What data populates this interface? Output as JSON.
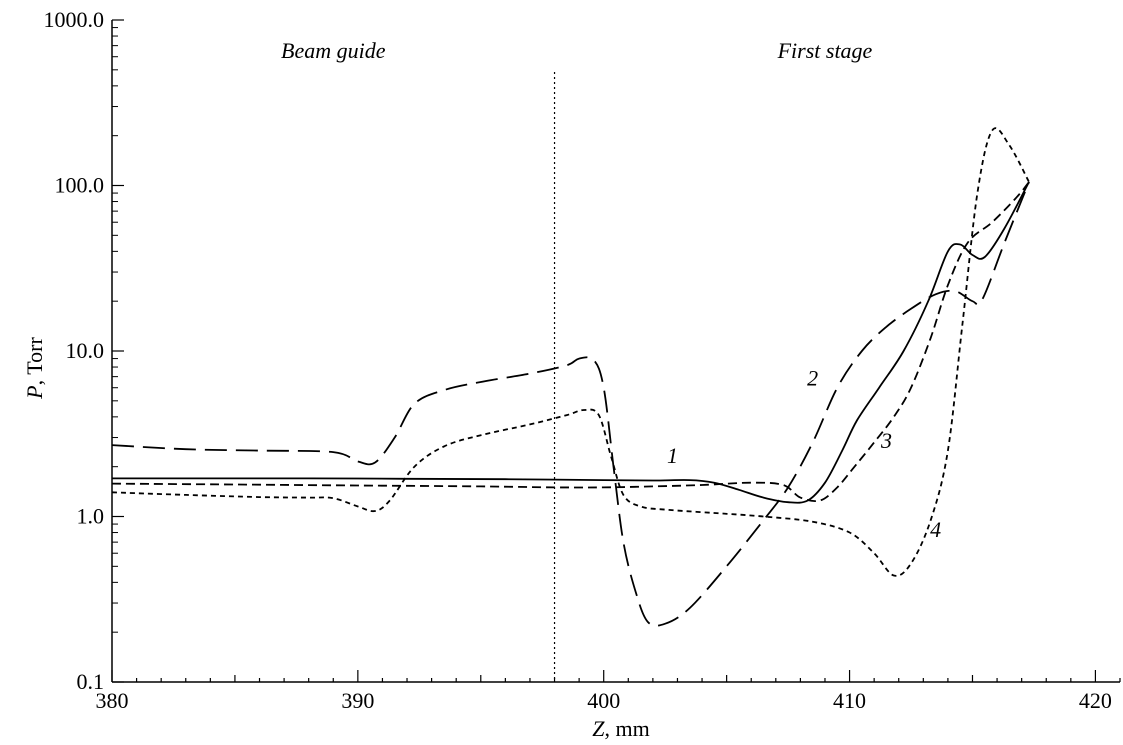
{
  "chart_data": {
    "type": "line",
    "title": "",
    "xlabel": {
      "symbol": "Z",
      "unit": ", mm"
    },
    "ylabel": {
      "symbol": "P",
      "unit": ", Torr"
    },
    "xlim": [
      380,
      421
    ],
    "ylim": [
      0.1,
      1000
    ],
    "yscale": "log",
    "x_ticks": [
      380,
      390,
      400,
      410,
      420
    ],
    "x_tick_labels": [
      "380",
      "390",
      "400",
      "410",
      "420"
    ],
    "y_ticks": [
      0.1,
      1,
      10,
      100,
      1000
    ],
    "y_tick_labels": [
      "0.1",
      "1.0",
      "10.0",
      "100.0",
      "1000.0"
    ],
    "grid": false,
    "divider": {
      "x": 398,
      "style": "dotted"
    },
    "regions": [
      {
        "label": "Beam guide",
        "x": 389
      },
      {
        "label": "First stage",
        "x": 409
      }
    ],
    "series": [
      {
        "name": "1",
        "style": "solid",
        "label_at": {
          "x": 402.8,
          "y": 2.1
        },
        "points": [
          [
            380,
            1.7
          ],
          [
            384,
            1.7
          ],
          [
            388,
            1.7
          ],
          [
            392,
            1.69
          ],
          [
            396,
            1.68
          ],
          [
            398,
            1.67
          ],
          [
            400,
            1.66
          ],
          [
            402,
            1.65
          ],
          [
            403.5,
            1.66
          ],
          [
            404.5,
            1.6
          ],
          [
            405.5,
            1.45
          ],
          [
            406.5,
            1.3
          ],
          [
            407.5,
            1.22
          ],
          [
            408.3,
            1.25
          ],
          [
            409,
            1.6
          ],
          [
            409.7,
            2.5
          ],
          [
            410.3,
            3.8
          ],
          [
            411.2,
            6
          ],
          [
            412.2,
            10
          ],
          [
            413.2,
            20
          ],
          [
            414,
            40
          ],
          [
            414.5,
            44
          ],
          [
            415,
            38
          ],
          [
            415.5,
            37
          ],
          [
            416.3,
            55
          ],
          [
            417.3,
            105
          ]
        ]
      },
      {
        "name": "2",
        "style": "long-dash",
        "label_at": {
          "x": 408.5,
          "y": 6.2
        },
        "points": [
          [
            380,
            2.7
          ],
          [
            383,
            2.55
          ],
          [
            386,
            2.5
          ],
          [
            389,
            2.45
          ],
          [
            390,
            2.15
          ],
          [
            390.7,
            2.12
          ],
          [
            391.5,
            3
          ],
          [
            392.3,
            4.8
          ],
          [
            393.5,
            5.8
          ],
          [
            395,
            6.5
          ],
          [
            397,
            7.3
          ],
          [
            398.5,
            8.2
          ],
          [
            399,
            9
          ],
          [
            399.6,
            8.8
          ],
          [
            400,
            6
          ],
          [
            400.4,
            2
          ],
          [
            400.8,
            0.7
          ],
          [
            401.3,
            0.35
          ],
          [
            401.8,
            0.23
          ],
          [
            402.5,
            0.225
          ],
          [
            403.5,
            0.28
          ],
          [
            405,
            0.5
          ],
          [
            406.5,
            0.95
          ],
          [
            407.5,
            1.5
          ],
          [
            408.5,
            2.8
          ],
          [
            409.5,
            6
          ],
          [
            410.5,
            10
          ],
          [
            411.5,
            14
          ],
          [
            412.5,
            18
          ],
          [
            413.5,
            22
          ],
          [
            414.3,
            23
          ],
          [
            415,
            20
          ],
          [
            415.4,
            20.5
          ],
          [
            416.3,
            45
          ],
          [
            417.3,
            105
          ]
        ]
      },
      {
        "name": "3",
        "style": "short-dash",
        "label_at": {
          "x": 411.5,
          "y": 2.6
        },
        "points": [
          [
            380,
            1.58
          ],
          [
            385,
            1.56
          ],
          [
            390,
            1.54
          ],
          [
            395,
            1.52
          ],
          [
            398,
            1.5
          ],
          [
            400,
            1.5
          ],
          [
            402,
            1.52
          ],
          [
            404,
            1.55
          ],
          [
            406,
            1.6
          ],
          [
            407.3,
            1.55
          ],
          [
            408,
            1.3
          ],
          [
            408.8,
            1.25
          ],
          [
            409.5,
            1.5
          ],
          [
            410.2,
            2
          ],
          [
            411,
            2.8
          ],
          [
            411.8,
            4
          ],
          [
            412.5,
            6
          ],
          [
            413.3,
            12
          ],
          [
            414,
            25
          ],
          [
            414.8,
            45
          ],
          [
            415.8,
            60
          ],
          [
            416.8,
            85
          ],
          [
            417.3,
            105
          ]
        ]
      },
      {
        "name": "4",
        "style": "dot-dash",
        "label_at": {
          "x": 413.5,
          "y": 0.75
        },
        "points": [
          [
            380,
            1.4
          ],
          [
            383,
            1.35
          ],
          [
            386,
            1.31
          ],
          [
            388,
            1.3
          ],
          [
            389,
            1.29
          ],
          [
            390,
            1.15
          ],
          [
            390.7,
            1.08
          ],
          [
            391.3,
            1.25
          ],
          [
            392.3,
            2
          ],
          [
            393.5,
            2.65
          ],
          [
            395,
            3.1
          ],
          [
            397,
            3.6
          ],
          [
            398.5,
            4.1
          ],
          [
            399.2,
            4.4
          ],
          [
            399.8,
            4.1
          ],
          [
            400.3,
            2.3
          ],
          [
            400.8,
            1.35
          ],
          [
            401.5,
            1.15
          ],
          [
            402.5,
            1.1
          ],
          [
            404.5,
            1.05
          ],
          [
            406.5,
            1.0
          ],
          [
            408.5,
            0.93
          ],
          [
            410,
            0.8
          ],
          [
            411,
            0.6
          ],
          [
            411.8,
            0.44
          ],
          [
            412.5,
            0.52
          ],
          [
            413.3,
            0.95
          ],
          [
            414,
            2.5
          ],
          [
            414.6,
            15
          ],
          [
            415.2,
            90
          ],
          [
            415.8,
            215
          ],
          [
            416.5,
            175
          ],
          [
            417.3,
            105
          ]
        ]
      }
    ]
  }
}
